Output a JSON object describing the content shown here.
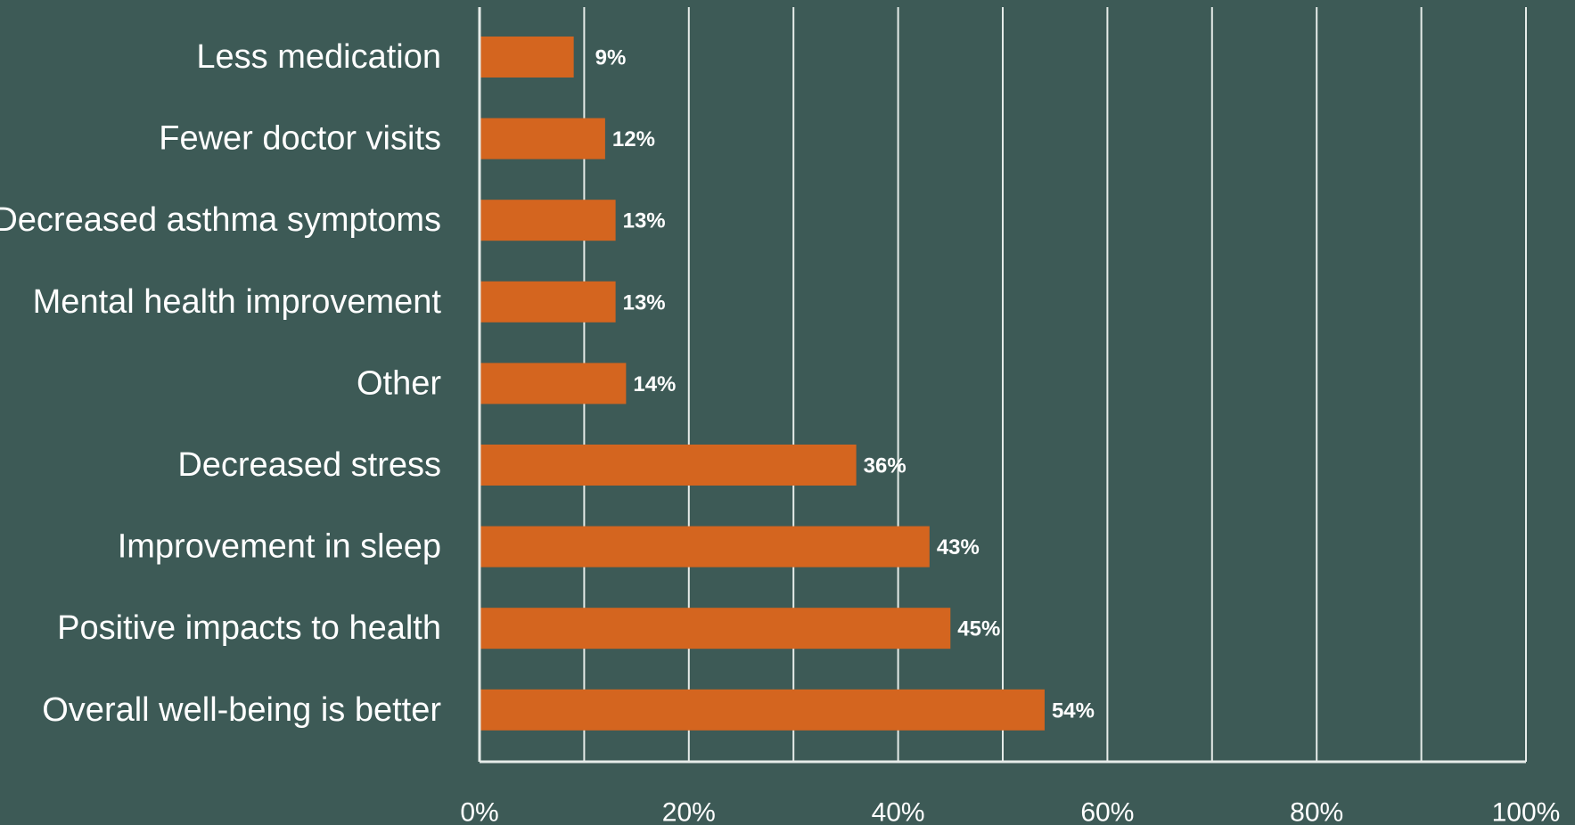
{
  "chart_data": {
    "type": "bar",
    "orientation": "horizontal",
    "categories": [
      "Less medication",
      "Fewer doctor visits",
      "Decreased asthma symptoms",
      "Mental health improvement",
      "Other",
      "Decreased stress",
      "Improvement in sleep",
      "Positive impacts to health",
      "Overall well-being is better"
    ],
    "values": [
      9,
      12,
      13,
      13,
      14,
      36,
      43,
      45,
      54
    ],
    "value_labels": [
      "9%",
      "12%",
      "13%",
      "13%",
      "14%",
      "36%",
      "43%",
      "45%",
      "54%"
    ],
    "xlim": [
      0,
      100
    ],
    "x_ticks": [
      0,
      20,
      40,
      60,
      80,
      100
    ],
    "x_tick_labels": [
      "0%",
      "20%",
      "40%",
      "60%",
      "80%",
      "100%"
    ],
    "grid_step": 10,
    "grid": true,
    "title": "",
    "xlabel": "",
    "ylabel": "",
    "colors": {
      "background": "#3d5a56",
      "bar": "#d4651f",
      "grid": "#e6ece9",
      "text": "#ffffff"
    }
  }
}
